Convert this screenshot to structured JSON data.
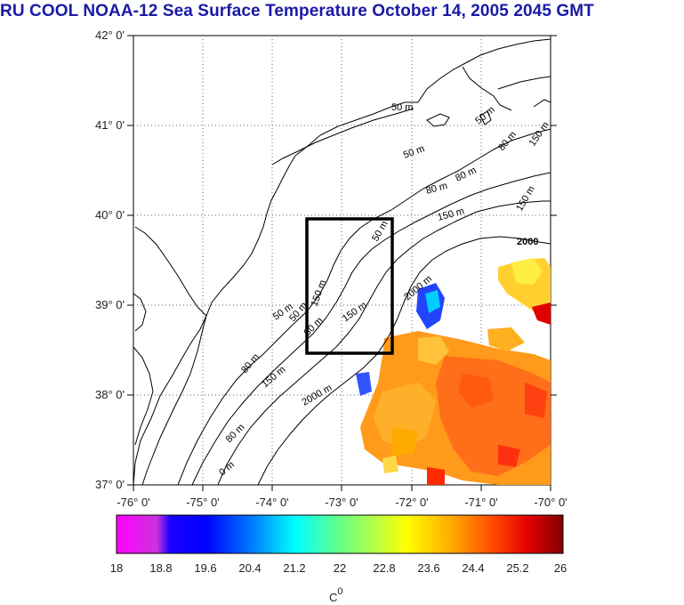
{
  "title": "RU COOL  NOAA-12 Sea Surface Temperature October 14, 2005 2045 GMT",
  "map": {
    "lon_ticks": [
      "-76° 0'",
      "-75° 0'",
      "-74° 0'",
      "-73° 0'",
      "-72° 0'",
      "-71° 0'",
      "-70° 0'"
    ],
    "lat_ticks": [
      "42° 0'",
      "41° 0'",
      "40° 0'",
      "39° 0'",
      "38° 0'",
      "37° 0'"
    ],
    "lon_range": [
      -76,
      -70
    ],
    "lat_range": [
      37,
      42
    ],
    "study_box": {
      "lon": [
        -73.5,
        -72.2
      ],
      "lat": [
        38.5,
        40.0
      ]
    },
    "isobath_labels": [
      "50 m",
      "50 m",
      "80 m",
      "80 m",
      "150 m",
      "150 m",
      "2000",
      "50 m",
      "80 m",
      "150 m",
      "2000 m",
      "150 m",
      "50 m",
      "80 m",
      "150 m",
      "2000 m",
      "50 m",
      "80 m",
      "150 m",
      "80 m",
      "50 m",
      "0 m"
    ]
  },
  "colorbar": {
    "labels": [
      "18",
      "18.8",
      "19.6",
      "20.4",
      "21.2",
      "22",
      "22.8",
      "23.6",
      "24.4",
      "25.2",
      "26"
    ],
    "unit": "C",
    "unit_sup": "0",
    "colors": [
      "#ff00ff",
      "#0000ff",
      "#00aaff",
      "#00ffff",
      "#7fff7f",
      "#ffff00",
      "#ffaa00",
      "#ff5500",
      "#ff0000",
      "#800000"
    ]
  }
}
